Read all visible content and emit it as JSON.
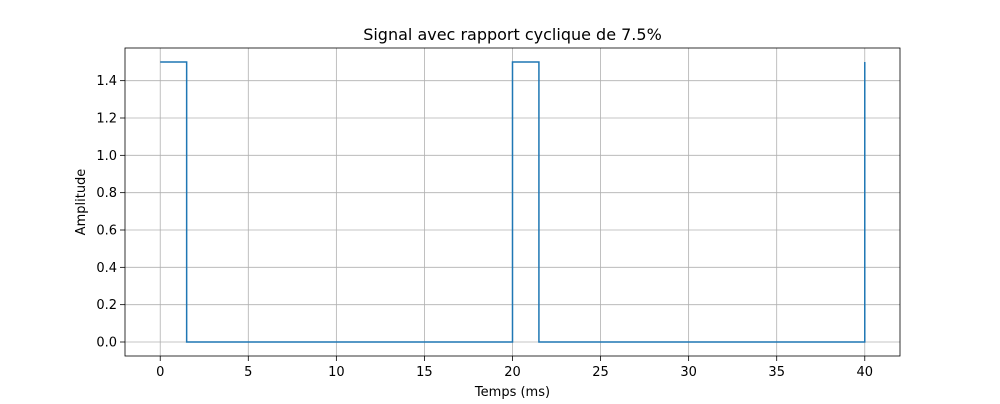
{
  "chart_data": {
    "type": "line",
    "title": "Signal avec rapport cyclique de 7.5%",
    "xlabel": "Temps (ms)",
    "ylabel": "Amplitude",
    "xlim": [
      -2,
      42
    ],
    "ylim": [
      -0.075,
      1.575
    ],
    "xticks": [
      0,
      5,
      10,
      15,
      20,
      25,
      30,
      35,
      40
    ],
    "xtick_labels": [
      "0",
      "5",
      "10",
      "15",
      "20",
      "25",
      "30",
      "35",
      "40"
    ],
    "yticks": [
      0.0,
      0.2,
      0.4,
      0.6,
      0.8,
      1.0,
      1.2,
      1.4
    ],
    "ytick_labels": [
      "0.0",
      "0.2",
      "0.4",
      "0.6",
      "0.8",
      "1.0",
      "1.2",
      "1.4"
    ],
    "grid": true,
    "legend": false,
    "series": [
      {
        "color": "#1f77b4",
        "x": [
          0,
          1.5,
          1.5,
          20,
          20,
          21.5,
          21.5,
          40,
          40
        ],
        "y": [
          1.5,
          1.5,
          0,
          0,
          1.5,
          1.5,
          0,
          0,
          1.5
        ]
      }
    ]
  }
}
